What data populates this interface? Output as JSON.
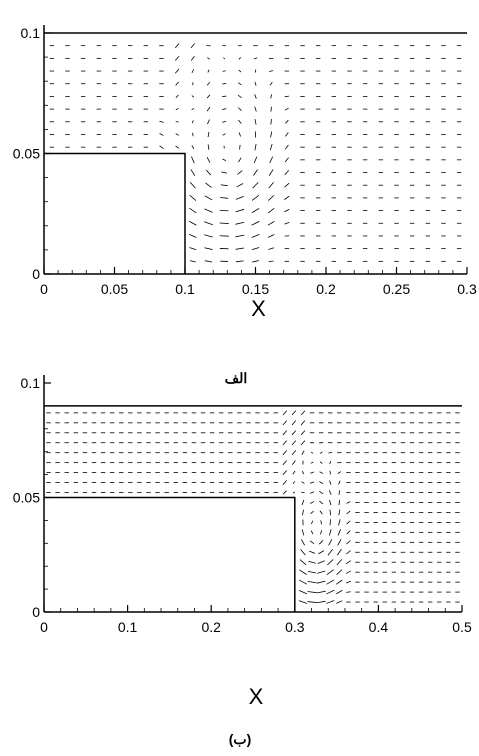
{
  "chart_data": [
    {
      "type": "vector_field",
      "xlabel": "X",
      "ylabel": "",
      "xlim": [
        0,
        0.3
      ],
      "ylim": [
        0,
        0.1
      ],
      "xticks": [
        "0",
        "0.05",
        "0.1",
        "0.15",
        "0.2",
        "0.25",
        "0.3"
      ],
      "yticks": [
        "0",
        "0.05",
        "0.1"
      ],
      "top_wall_y": 0.1,
      "step": {
        "x_end": 0.1,
        "height": 0.05
      },
      "vortex": {
        "center": [
          0.13,
          0.045
        ],
        "radius": 0.04
      },
      "caption": "الف"
    },
    {
      "type": "vector_field",
      "xlabel": "X",
      "ylabel": "",
      "xlim": [
        0,
        0.5
      ],
      "ylim": [
        0,
        0.1
      ],
      "xticks": [
        "0",
        "0.1",
        "0.2",
        "0.3",
        "0.4",
        "0.5"
      ],
      "yticks": [
        "0",
        "0.05",
        "0.1"
      ],
      "top_wall_y": 0.09,
      "step": {
        "x_end": 0.3,
        "height": 0.05
      },
      "vortex": {
        "center": [
          0.325,
          0.03
        ],
        "radius": 0.035
      },
      "caption": "(ب)"
    }
  ]
}
